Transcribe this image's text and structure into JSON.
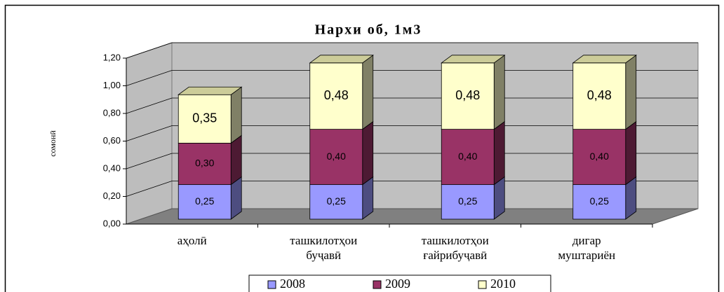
{
  "chart_data": {
    "type": "bar3d_stacked",
    "title": "Нархи об, 1м3",
    "y_label": "сомонӣ",
    "categories": [
      "аҳолӣ",
      "ташкилотҳои буҷавӣ",
      "ташкилотҳои ғайрибуҷавӣ",
      "дигар муштариён"
    ],
    "series": [
      {
        "name": "2008",
        "color": "#9999ff",
        "side_color": "#4d4d80",
        "values": [
          0.25,
          0.25,
          0.25,
          0.25
        ],
        "value_labels": [
          "0,25",
          "0,25",
          "0,25",
          "0,25"
        ]
      },
      {
        "name": "2009",
        "color": "#993366",
        "side_color": "#4d1a33",
        "values": [
          0.3,
          0.4,
          0.4,
          0.4
        ],
        "value_labels": [
          "0,30",
          "0,40",
          "0,40",
          "0,40"
        ]
      },
      {
        "name": "2010",
        "color": "#ffffcc",
        "side_color": "#808066",
        "values": [
          0.35,
          0.48,
          0.48,
          0.48
        ],
        "value_labels": [
          "0,35",
          "0,48",
          "0,48",
          "0,48"
        ]
      }
    ],
    "ylim": [
      0,
      1.2
    ],
    "yticks": [
      {
        "value": 0,
        "label": "0,00"
      },
      {
        "value": 0.2,
        "label": "0,20"
      },
      {
        "value": 0.4,
        "label": "0,40"
      },
      {
        "value": 0.6,
        "label": "0,60"
      },
      {
        "value": 0.8,
        "label": "0,80"
      },
      {
        "value": 1.0,
        "label": "1,00"
      },
      {
        "value": 1.2,
        "label": "1,20"
      }
    ],
    "grid": true,
    "legend": "bottom"
  }
}
